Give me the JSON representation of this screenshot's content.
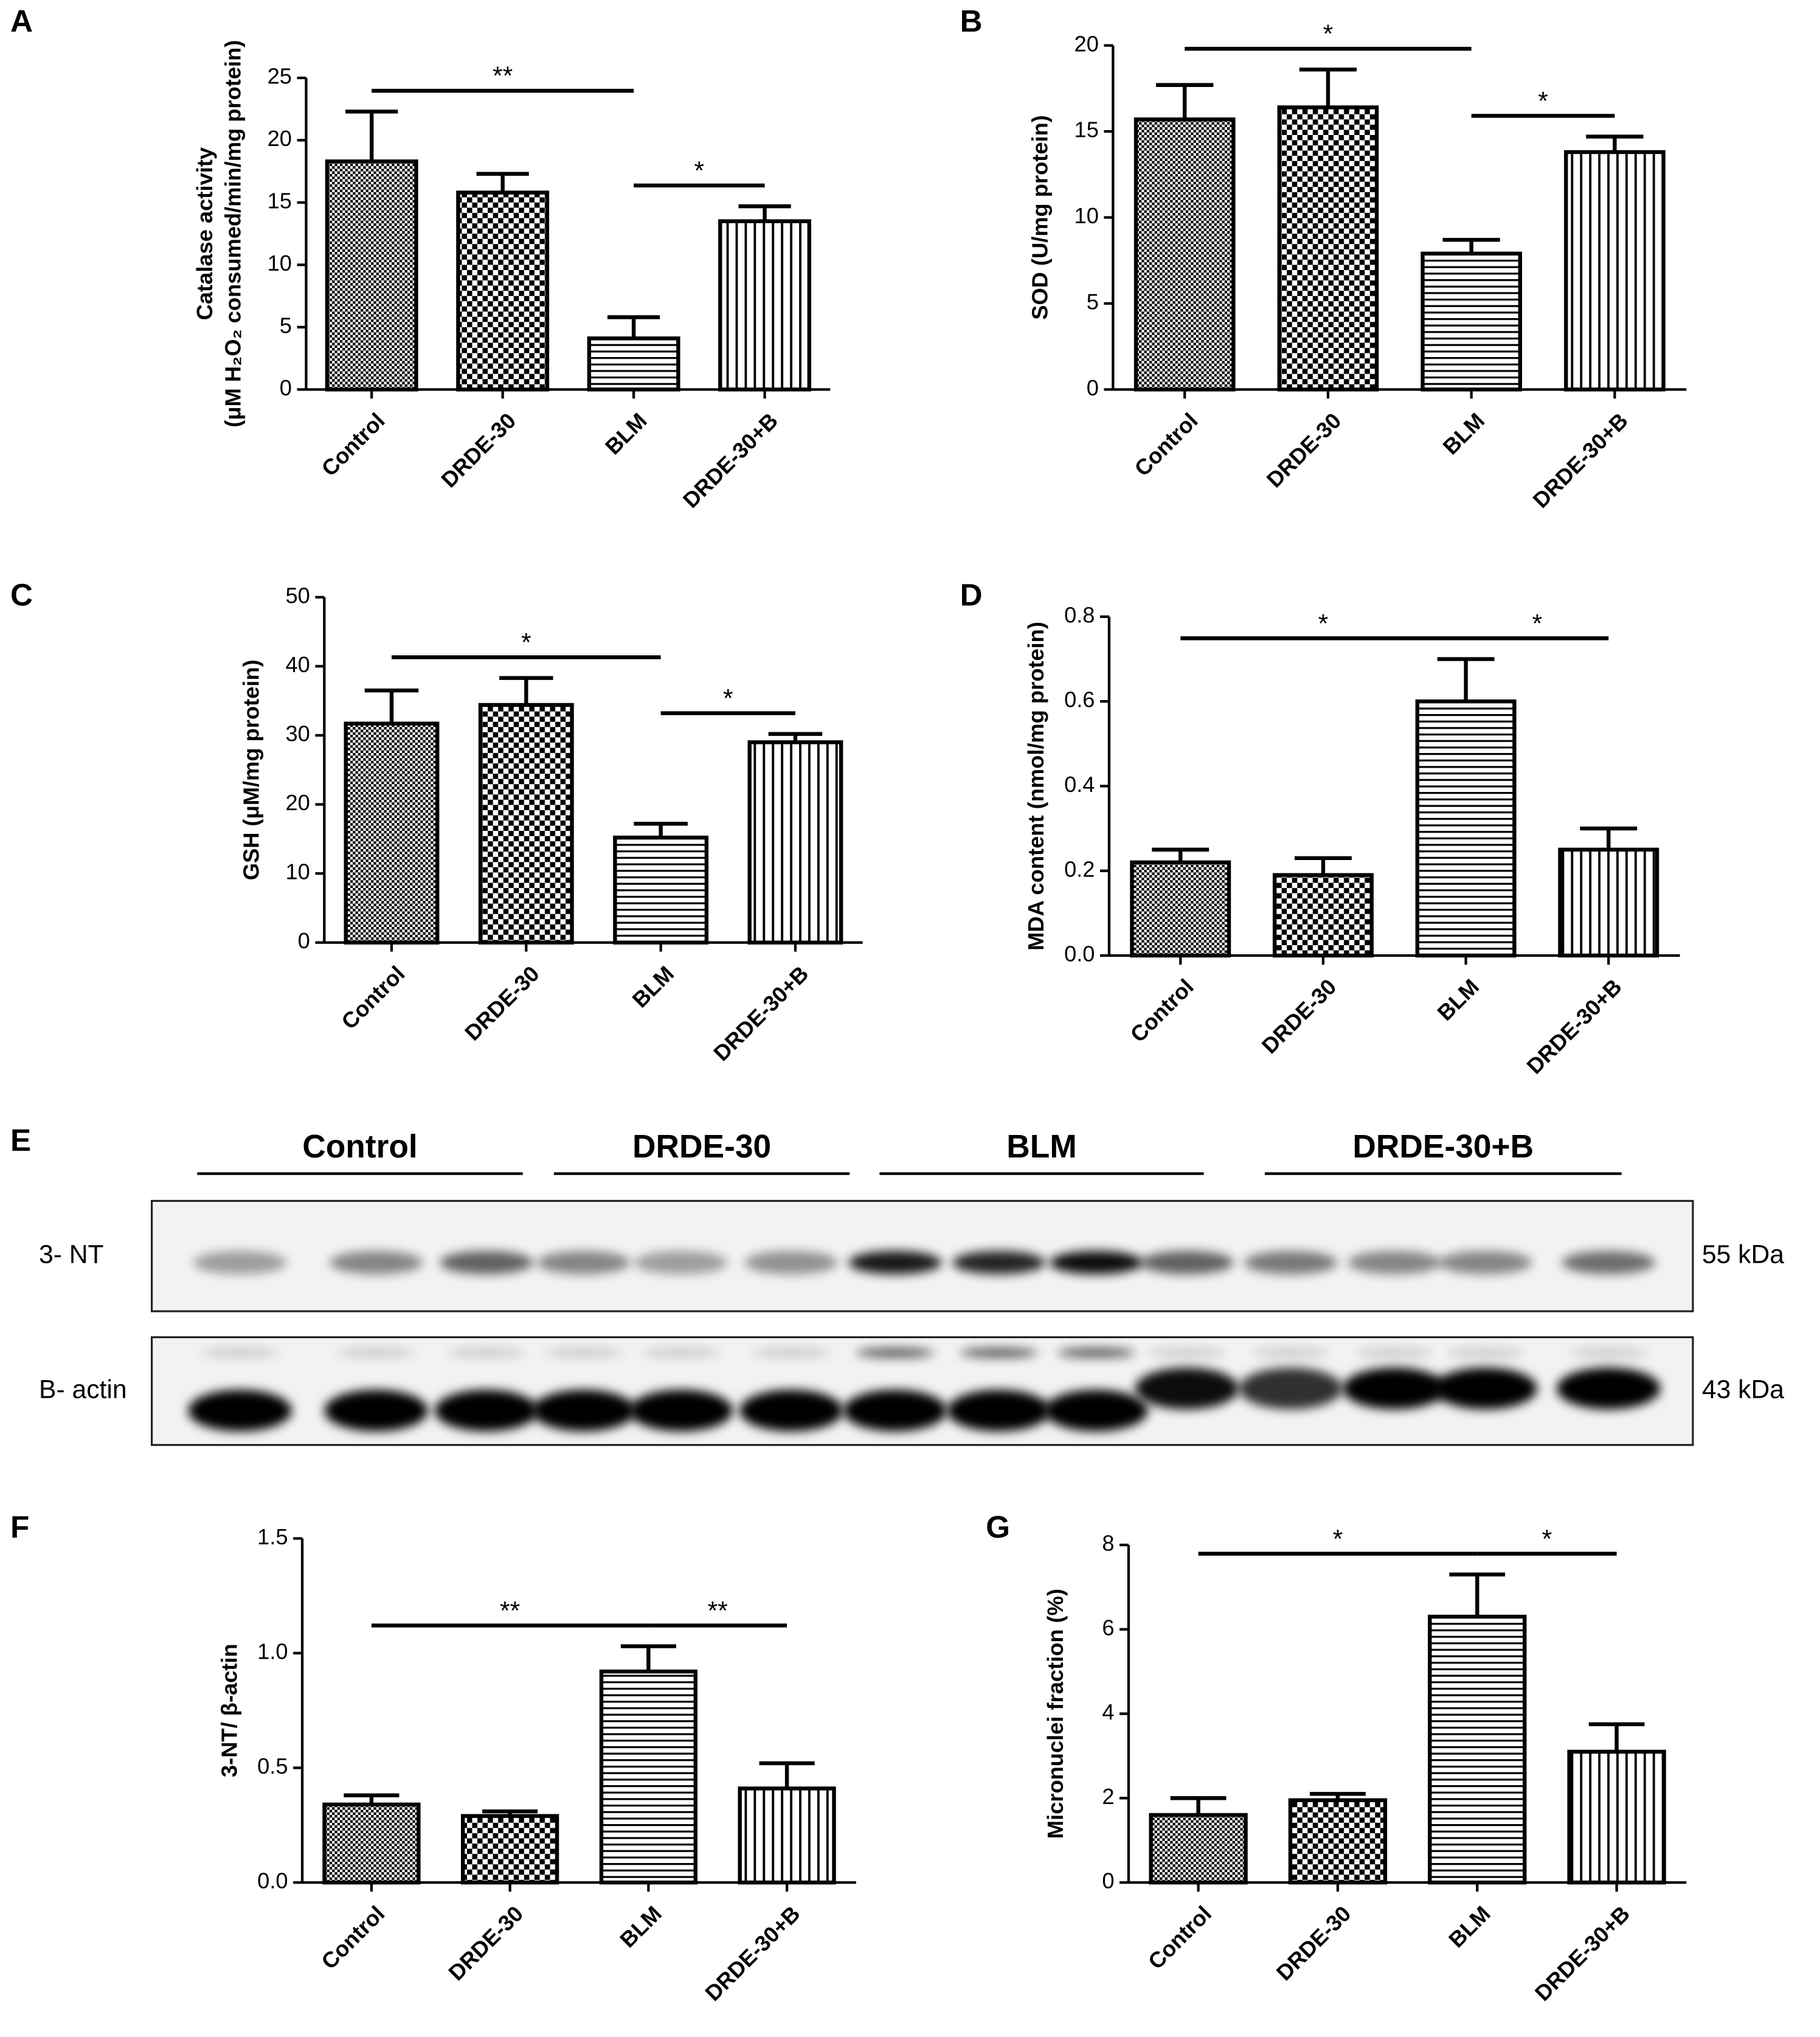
{
  "chart_data": [
    {
      "type": "bar",
      "panel": "A",
      "ylabel": [
        "Catalase activity",
        "(μM H₂O₂ consumed/min/mg protein)"
      ],
      "categories": [
        "Control",
        "DRDE-30",
        "BLM",
        "DRDE-30+B"
      ],
      "values": [
        18.3,
        15.8,
        4.1,
        13.5
      ],
      "errors": [
        4.0,
        1.5,
        1.7,
        1.2
      ],
      "patterns": [
        "fine-check",
        "check",
        "horizontal",
        "vertical"
      ],
      "color": "#000000",
      "ylim": [
        0,
        25
      ],
      "yticks": [
        0,
        5,
        10,
        15,
        20,
        25
      ],
      "annotations": [
        {
          "text": "**",
          "from": "Control",
          "to": "BLM"
        },
        {
          "text": "*",
          "from": "BLM",
          "to": "DRDE-30+B"
        }
      ]
    },
    {
      "type": "bar",
      "panel": "B",
      "ylabel": [
        "SOD (U/mg protein)"
      ],
      "categories": [
        "Control",
        "DRDE-30",
        "BLM",
        "DRDE-30+B"
      ],
      "values": [
        15.7,
        16.4,
        7.9,
        13.8
      ],
      "errors": [
        2.0,
        2.2,
        0.8,
        0.9
      ],
      "patterns": [
        "fine-check",
        "check",
        "horizontal",
        "vertical"
      ],
      "color": "#000000",
      "ylim": [
        0,
        20
      ],
      "yticks": [
        0,
        5,
        10,
        15,
        20
      ],
      "annotations": [
        {
          "text": "*",
          "from": "Control",
          "to": "BLM"
        },
        {
          "text": "*",
          "from": "BLM",
          "to": "DRDE-30+B"
        }
      ]
    },
    {
      "type": "bar",
      "panel": "C",
      "ylabel": [
        "GSH (μM/mg protein)"
      ],
      "categories": [
        "Control",
        "DRDE-30",
        "BLM",
        "DRDE-30+B"
      ],
      "values": [
        31.7,
        34.4,
        15.2,
        29.0
      ],
      "errors": [
        4.8,
        3.9,
        2.0,
        1.2
      ],
      "patterns": [
        "fine-check",
        "check",
        "horizontal",
        "vertical"
      ],
      "color": "#000000",
      "ylim": [
        0,
        50
      ],
      "yticks": [
        0,
        10,
        20,
        30,
        40,
        50
      ],
      "annotations": [
        {
          "text": "*",
          "from": "Control",
          "to": "BLM"
        },
        {
          "text": "*",
          "from": "BLM",
          "to": "DRDE-30+B"
        }
      ]
    },
    {
      "type": "bar",
      "panel": "D",
      "ylabel": [
        "MDA content (nmol/mg protein)"
      ],
      "categories": [
        "Control",
        "DRDE-30",
        "BLM",
        "DRDE-30+B"
      ],
      "values": [
        0.22,
        0.19,
        0.6,
        0.25
      ],
      "errors": [
        0.03,
        0.04,
        0.1,
        0.05
      ],
      "patterns": [
        "fine-check",
        "check",
        "horizontal",
        "vertical"
      ],
      "color": "#000000",
      "ylim": [
        0,
        0.8
      ],
      "yticks": [
        {
          "value": 0,
          "label": "0.0"
        },
        0.2,
        0.4,
        0.6,
        0.8
      ],
      "annotations": [
        {
          "text": "*",
          "from": "Control",
          "to": "BLM"
        },
        {
          "text": "*",
          "from": "BLM",
          "to": "DRDE-30+B"
        }
      ]
    },
    {
      "type": "bar",
      "panel": "F",
      "ylabel": [
        "3-NT/ β-actin"
      ],
      "categories": [
        "Control",
        "DRDE-30",
        "BLM",
        "DRDE-30+B"
      ],
      "values": [
        0.34,
        0.29,
        0.92,
        0.41
      ],
      "errors": [
        0.04,
        0.02,
        0.11,
        0.11
      ],
      "patterns": [
        "fine-check",
        "check",
        "horizontal",
        "vertical"
      ],
      "color": "#000000",
      "ylim": [
        0,
        1.5
      ],
      "yticks": [
        {
          "value": 0,
          "label": "0.0"
        },
        0.5,
        {
          "value": 1,
          "label": "1.0"
        },
        1.5
      ],
      "annotations": [
        {
          "text": "**",
          "from": "Control",
          "to": "BLM"
        },
        {
          "text": "**",
          "from": "BLM",
          "to": "DRDE-30+B"
        }
      ]
    },
    {
      "type": "bar",
      "panel": "G",
      "ylabel": [
        "Micronuclei fraction (%)"
      ],
      "categories": [
        "Control",
        "DRDE-30",
        "BLM",
        "DRDE-30+B"
      ],
      "values": [
        1.6,
        1.95,
        6.3,
        3.1
      ],
      "errors": [
        0.4,
        0.15,
        1.0,
        0.65
      ],
      "patterns": [
        "fine-check",
        "check",
        "horizontal",
        "vertical"
      ],
      "color": "#000000",
      "ylim": [
        0,
        8
      ],
      "yticks": [
        0,
        2,
        4,
        6,
        8
      ],
      "annotations": [
        {
          "text": "*",
          "from": "Control",
          "to": "BLM"
        },
        {
          "text": "*",
          "from": "BLM",
          "to": "DRDE-30+B"
        }
      ]
    }
  ],
  "blot": {
    "panel": "E",
    "groups": [
      "Control",
      "DRDE-30",
      "BLM",
      "DRDE-30+B"
    ],
    "rows": [
      {
        "label": "3- NT",
        "size": "55 kDa"
      },
      {
        "label": "B- actin",
        "size": "43 kDa"
      }
    ]
  }
}
